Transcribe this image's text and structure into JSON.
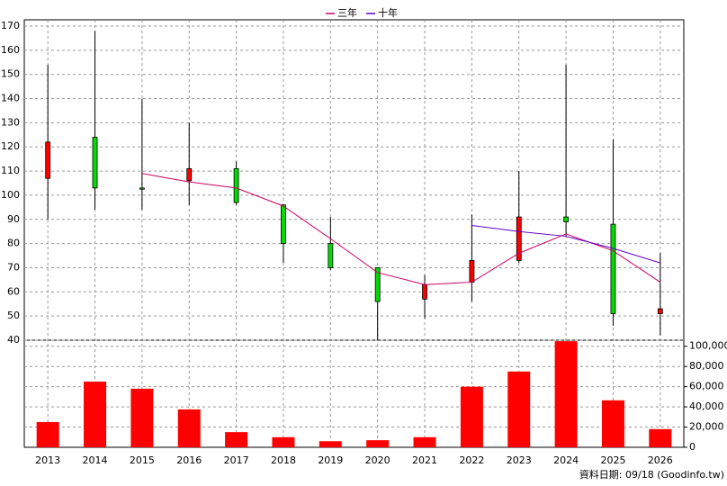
{
  "chart_data": {
    "type": "candlestick",
    "categories": [
      "2013",
      "2014",
      "2015",
      "2016",
      "2017",
      "2018",
      "2019",
      "2020",
      "2021",
      "2022",
      "2023",
      "2024",
      "2025",
      "2026"
    ],
    "open": [
      107,
      124,
      103,
      106,
      111,
      96,
      80,
      70,
      57,
      64,
      73,
      91,
      88,
      51
    ],
    "high": [
      154,
      168,
      140,
      130,
      114,
      96,
      91,
      70,
      67,
      92,
      110,
      154,
      123,
      76
    ],
    "low": [
      90,
      94,
      94,
      96,
      96,
      72,
      69,
      40,
      49,
      56,
      72,
      83,
      46,
      42
    ],
    "close": [
      122,
      103,
      102.5,
      111,
      97,
      80,
      70,
      56,
      63,
      73,
      91,
      89,
      51,
      53
    ],
    "up_color": "#ff0000",
    "down_color": "#00dd00",
    "ylim": [
      40,
      170
    ],
    "yticks": [
      40,
      50,
      60,
      70,
      80,
      90,
      100,
      110,
      120,
      130,
      140,
      150,
      160,
      170
    ],
    "grid": true,
    "moving_averages": [
      {
        "name": "三年",
        "color": "#cc0066",
        "values": [
          null,
          null,
          109,
          105.5,
          103,
          95.5,
          82,
          68,
          63,
          64,
          76,
          84,
          77,
          64
        ]
      },
      {
        "name": "十年",
        "color": "#6600cc",
        "values": [
          null,
          null,
          null,
          null,
          null,
          null,
          null,
          null,
          null,
          87.5,
          85,
          83,
          78,
          72
        ]
      }
    ],
    "volume": {
      "color": "#ff0000",
      "values": [
        25000,
        65000,
        58000,
        37500,
        15000,
        10000,
        6000,
        7000,
        10000,
        60000,
        75000,
        105000,
        46500,
        18000
      ],
      "ylim": [
        0,
        106000
      ],
      "yticks": [
        0,
        {
          "value": 20000,
          "label": "20,000"
        },
        {
          "value": 40000,
          "label": "40,000"
        },
        {
          "value": 60000,
          "label": "60,000"
        },
        {
          "value": 80000,
          "label": "80,000"
        },
        {
          "value": 100000,
          "label": "100,000"
        }
      ]
    },
    "footer": "資料日期: 09/18  (Goodinfo.tw)"
  }
}
